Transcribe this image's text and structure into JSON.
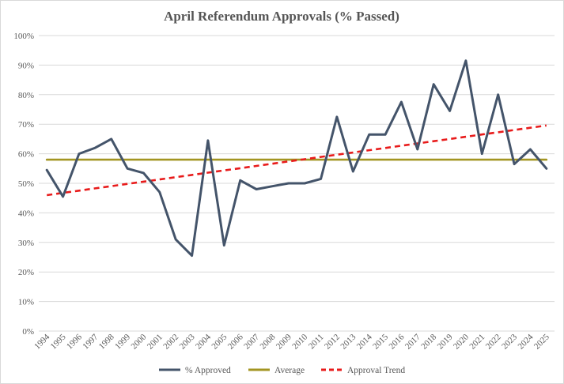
{
  "chart_data": {
    "type": "line",
    "title": "April Referendum Approvals (% Passed)",
    "xlabel": "",
    "ylabel": "",
    "x": [
      "1994",
      "1995",
      "1996",
      "1997",
      "1998",
      "1999",
      "2000",
      "2001",
      "2002",
      "2003",
      "2004",
      "2005",
      "2006",
      "2007",
      "2008",
      "2009",
      "2010",
      "2011",
      "2012",
      "2013",
      "2014",
      "2015",
      "2016",
      "2017",
      "2018",
      "2019",
      "2020",
      "2021",
      "2022",
      "2023",
      "2024",
      "2025"
    ],
    "ylim": [
      0,
      100
    ],
    "y_ticks": [
      "0%",
      "10%",
      "20%",
      "30%",
      "40%",
      "50%",
      "60%",
      "70%",
      "80%",
      "90%",
      "100%"
    ],
    "grid": "horizontal",
    "legend_position": "bottom",
    "series": [
      {
        "name": "% Approved",
        "style": "solid",
        "color": "#44546a",
        "values": [
          54.5,
          45.5,
          60,
          62,
          65,
          55,
          53.5,
          47,
          31,
          25.5,
          64.5,
          29,
          51,
          48,
          49,
          50,
          50,
          51.5,
          72.5,
          54,
          66.5,
          66.5,
          77.5,
          61.5,
          83.5,
          74.5,
          91.5,
          60,
          80,
          56.5,
          61.5,
          55
        ]
      },
      {
        "name": "Average",
        "style": "solid",
        "color": "#a39522",
        "values": [
          58,
          58,
          58,
          58,
          58,
          58,
          58,
          58,
          58,
          58,
          58,
          58,
          58,
          58,
          58,
          58,
          58,
          58,
          58,
          58,
          58,
          58,
          58,
          58,
          58,
          58,
          58,
          58,
          58,
          58,
          58,
          58
        ]
      },
      {
        "name": "Approval Trend",
        "style": "dashed",
        "color": "#e81b1b",
        "values": [
          46,
          46.76,
          47.52,
          48.28,
          49.04,
          49.8,
          50.56,
          51.32,
          52.08,
          52.84,
          53.6,
          54.36,
          55.12,
          55.88,
          56.64,
          57.4,
          58.16,
          58.92,
          59.68,
          60.44,
          61.2,
          61.96,
          62.72,
          63.48,
          64.24,
          65,
          65.76,
          66.52,
          67.28,
          68.04,
          68.8,
          69.56
        ]
      }
    ]
  }
}
